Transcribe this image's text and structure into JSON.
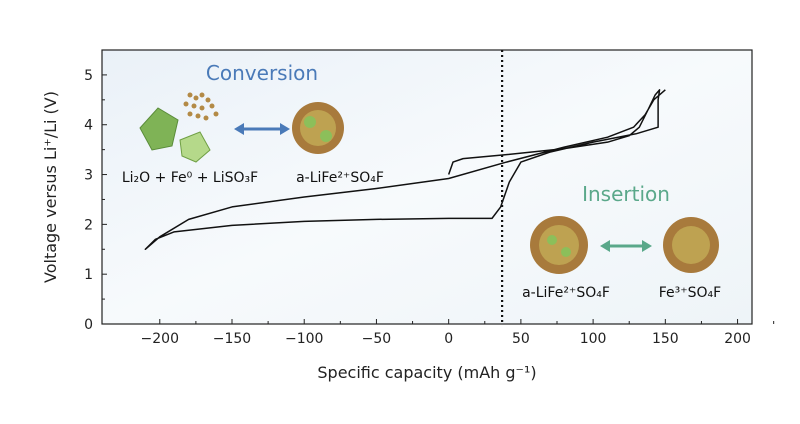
{
  "chart_data": {
    "type": "line",
    "title": "",
    "xlabel": "Specific capacity (mAh g⁻¹)",
    "ylabel": "Voltage versus Li⁺/Li (V)",
    "xlim": [
      -240,
      210
    ],
    "ylim": [
      0,
      5.5
    ],
    "xticks": [
      -200,
      -150,
      -100,
      -50,
      0,
      50,
      100,
      150,
      200
    ],
    "yticks": [
      0,
      1,
      2,
      3,
      4,
      5
    ],
    "grid": false,
    "vline_x": 37,
    "series": [
      {
        "points": [
          [
            0,
            3.0
          ],
          [
            3,
            3.25
          ],
          [
            10,
            3.32
          ],
          [
            40,
            3.4
          ],
          [
            80,
            3.52
          ],
          [
            110,
            3.65
          ],
          [
            125,
            3.78
          ],
          [
            132,
            3.95
          ],
          [
            138,
            4.3
          ],
          [
            143,
            4.6
          ],
          [
            146,
            4.7
          ],
          [
            145,
            4.5
          ],
          [
            145,
            3.95
          ],
          [
            130,
            3.82
          ],
          [
            100,
            3.65
          ],
          [
            70,
            3.45
          ],
          [
            50,
            3.25
          ],
          [
            42,
            2.85
          ],
          [
            36,
            2.35
          ],
          [
            30,
            2.12
          ],
          [
            0,
            2.12
          ],
          [
            -50,
            2.1
          ],
          [
            -100,
            2.06
          ],
          [
            -150,
            1.98
          ],
          [
            -190,
            1.85
          ],
          [
            -203,
            1.7
          ],
          [
            -210,
            1.5
          ],
          [
            -200,
            1.75
          ],
          [
            -180,
            2.1
          ],
          [
            -150,
            2.35
          ],
          [
            -100,
            2.55
          ],
          [
            -50,
            2.72
          ],
          [
            0,
            2.92
          ],
          [
            40,
            3.25
          ],
          [
            80,
            3.55
          ],
          [
            110,
            3.75
          ],
          [
            128,
            3.95
          ],
          [
            136,
            4.2
          ],
          [
            142,
            4.5
          ],
          [
            150,
            4.7
          ]
        ]
      }
    ],
    "annotations": {
      "conversion_title": "Conversion",
      "conversion_left": "Li₂O + Fe⁰ + LiSO₃F",
      "conversion_right": "a-LiFe²⁺SO₄F",
      "insertion_title": "Insertion",
      "insertion_left": "a-LiFe²⁺SO₄F",
      "insertion_right": "Fe³⁺SO₄F"
    },
    "colors": {
      "conversion": "#4a7ab8",
      "insertion": "#5aa88a",
      "crystal_brown": "#a87a3c",
      "crystal_green": "#8cbf5a",
      "background": "#f0f5fa"
    }
  }
}
